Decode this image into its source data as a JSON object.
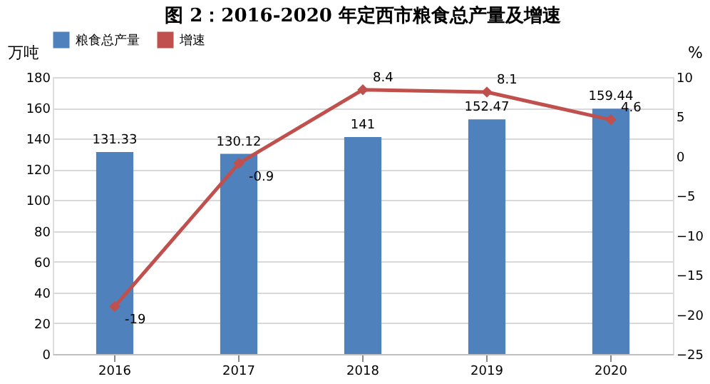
{
  "chart_data": {
    "type": "bar",
    "title": "图 2：2016-2020 年定西市粮食总产量及增速",
    "categories": [
      "2016",
      "2017",
      "2018",
      "2019",
      "2020"
    ],
    "series": [
      {
        "name": "粮食总产量",
        "type": "bar",
        "color": "#4f81bd",
        "values": [
          131.33,
          130.12,
          141,
          152.47,
          159.44
        ]
      },
      {
        "name": "增速",
        "type": "line",
        "axis": "y2",
        "color": "#c0504d",
        "marker": "diamond",
        "line_style": "solid",
        "values": [
          -19,
          -0.9,
          8.4,
          8.1,
          4.6
        ]
      }
    ],
    "ylabel": "万吨",
    "y2label": "%",
    "ylim": [
      0,
      180
    ],
    "yticks": [
      0,
      20,
      40,
      60,
      80,
      100,
      120,
      140,
      160,
      180
    ],
    "y2lim": [
      -25,
      10
    ],
    "y2ticks": [
      -25,
      -20,
      -15,
      -10,
      -5,
      0,
      5,
      10
    ],
    "data_labels": true,
    "grid": "y",
    "legend": "top"
  }
}
